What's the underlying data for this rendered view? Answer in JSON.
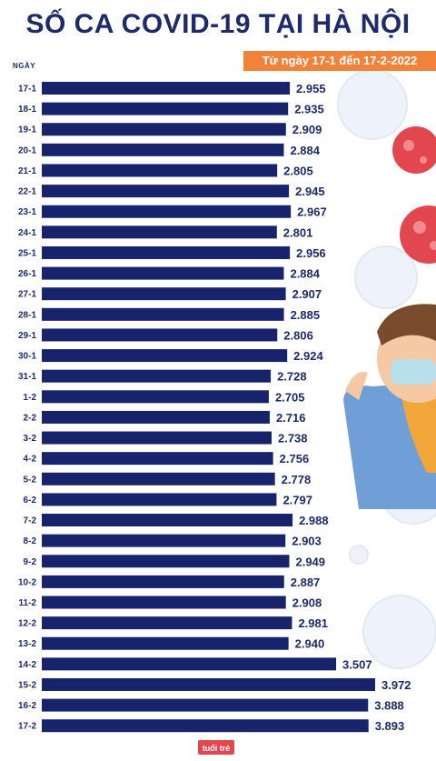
{
  "header": {
    "title": "SỐ CA COVID-19 TẠI HÀ NỘI",
    "subtitle": "Từ ngày 17-1 đến 17-2-2022",
    "axis_label": "NGÀY"
  },
  "logo": {
    "text": "tuổi trẻ"
  },
  "colors": {
    "bar": "#17236b",
    "title": "#1d2a6b",
    "subtitle_bg": "#f0823a",
    "virus_red": "#e2474f",
    "virus_pale": "#eef2fa"
  },
  "chart_data": {
    "type": "bar",
    "orientation": "horizontal",
    "categories": [
      "17-1",
      "18-1",
      "19-1",
      "20-1",
      "21-1",
      "22-1",
      "23-1",
      "24-1",
      "25-1",
      "26-1",
      "27-1",
      "28-1",
      "29-1",
      "30-1",
      "31-1",
      "1-2",
      "2-2",
      "3-2",
      "4-2",
      "5-2",
      "6-2",
      "7-2",
      "8-2",
      "9-2",
      "10-2",
      "11-2",
      "12-2",
      "13-2",
      "14-2",
      "15-2",
      "16-2",
      "17-2"
    ],
    "values": [
      2955,
      2935,
      2909,
      2884,
      2805,
      2945,
      2967,
      2801,
      2956,
      2884,
      2907,
      2885,
      2806,
      2924,
      2728,
      2705,
      2716,
      2738,
      2756,
      2778,
      2797,
      2988,
      2903,
      2949,
      2887,
      2908,
      2981,
      2940,
      3507,
      3972,
      3888,
      3893
    ],
    "value_labels": [
      "2.955",
      "2.935",
      "2.909",
      "2.884",
      "2.805",
      "2.945",
      "2.967",
      "2.801",
      "2.956",
      "2.884",
      "2.907",
      "2.885",
      "2.806",
      "2.924",
      "2.728",
      "2.705",
      "2.716",
      "2.738",
      "2.756",
      "2.778",
      "2.797",
      "2.988",
      "2.903",
      "2.949",
      "2.887",
      "2.908",
      "2.981",
      "2.940",
      "3.507",
      "3.972",
      "3.888",
      "3.893"
    ],
    "title": "SỐ CA COVID-19 TẠI HÀ NỘI",
    "subtitle": "Từ ngày 17-1 đến 17-2-2022",
    "xlabel": "",
    "ylabel": "NGÀY",
    "xlim": [
      0,
      4000
    ],
    "grid": false,
    "legend": "none"
  }
}
